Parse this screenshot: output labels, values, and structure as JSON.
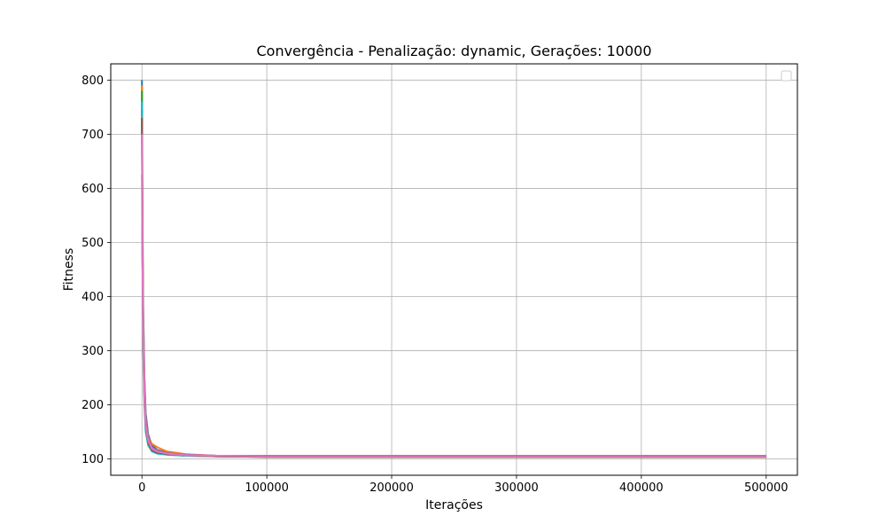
{
  "chart_data": {
    "type": "line",
    "title": "Convergência - Penalização: dynamic, Gerações: 10000",
    "xlabel": "Iterações",
    "ylabel": "Fitness",
    "xlim": [
      -25000,
      525000
    ],
    "ylim": [
      70,
      830
    ],
    "xticks": [
      0,
      100000,
      200000,
      300000,
      400000,
      500000
    ],
    "yticks": [
      100,
      200,
      300,
      400,
      500,
      600,
      700,
      800
    ],
    "grid": true,
    "legend": {
      "position": "top-right",
      "entries": []
    },
    "series": [
      {
        "color": "#1f77b4",
        "x": [
          0,
          400,
          1000,
          2000,
          3000,
          5000,
          8000,
          12000,
          20000,
          35000,
          60000,
          100000,
          500000
        ],
        "y": [
          800,
          560,
          380,
          250,
          185,
          145,
          125,
          117,
          112,
          108,
          106,
          105,
          105
        ]
      },
      {
        "color": "#ff7f0e",
        "x": [
          0,
          400,
          1000,
          2000,
          3000,
          5000,
          8000,
          12000,
          20000,
          35000,
          60000,
          100000,
          500000
        ],
        "y": [
          790,
          540,
          360,
          240,
          178,
          140,
          128,
          122,
          114,
          109,
          106,
          105,
          105
        ]
      },
      {
        "color": "#2ca02c",
        "x": [
          0,
          400,
          1000,
          2000,
          3000,
          5000,
          8000,
          12000,
          20000,
          35000,
          60000,
          100000,
          500000
        ],
        "y": [
          780,
          520,
          330,
          220,
          165,
          132,
          118,
          113,
          110,
          107,
          105,
          104,
          104
        ]
      },
      {
        "color": "#d62728",
        "x": [
          0,
          400,
          1000,
          2000,
          3000,
          5000,
          8000,
          12000,
          20000,
          35000,
          60000,
          100000,
          500000
        ],
        "y": [
          745,
          500,
          320,
          210,
          160,
          128,
          115,
          111,
          108,
          106,
          105,
          104,
          104
        ]
      },
      {
        "color": "#9467bd",
        "x": [
          0,
          400,
          1000,
          2000,
          3000,
          5000,
          8000,
          12000,
          20000,
          35000,
          60000,
          100000,
          500000
        ],
        "y": [
          625,
          470,
          340,
          230,
          175,
          138,
          122,
          116,
          111,
          108,
          106,
          106,
          106
        ]
      },
      {
        "color": "#17becf",
        "x": [
          0,
          400,
          1000,
          2000,
          3000,
          5000,
          8000,
          12000,
          20000,
          35000,
          60000,
          100000,
          500000
        ],
        "y": [
          760,
          510,
          300,
          200,
          150,
          125,
          114,
          110,
          108,
          106,
          105,
          105,
          105
        ]
      },
      {
        "color": "#8c564b",
        "x": [
          0,
          400,
          1000,
          2000,
          3000,
          5000,
          8000,
          12000,
          20000,
          35000,
          60000,
          100000,
          500000
        ],
        "y": [
          730,
          490,
          310,
          205,
          158,
          130,
          116,
          112,
          109,
          107,
          105,
          105,
          105
        ]
      },
      {
        "color": "#e377c2",
        "x": [
          0,
          400,
          1000,
          2000,
          3000,
          5000,
          8000,
          12000,
          20000,
          35000,
          60000,
          100000,
          500000
        ],
        "y": [
          700,
          480,
          325,
          215,
          162,
          134,
          119,
          114,
          110,
          107,
          106,
          105,
          105
        ]
      }
    ]
  }
}
